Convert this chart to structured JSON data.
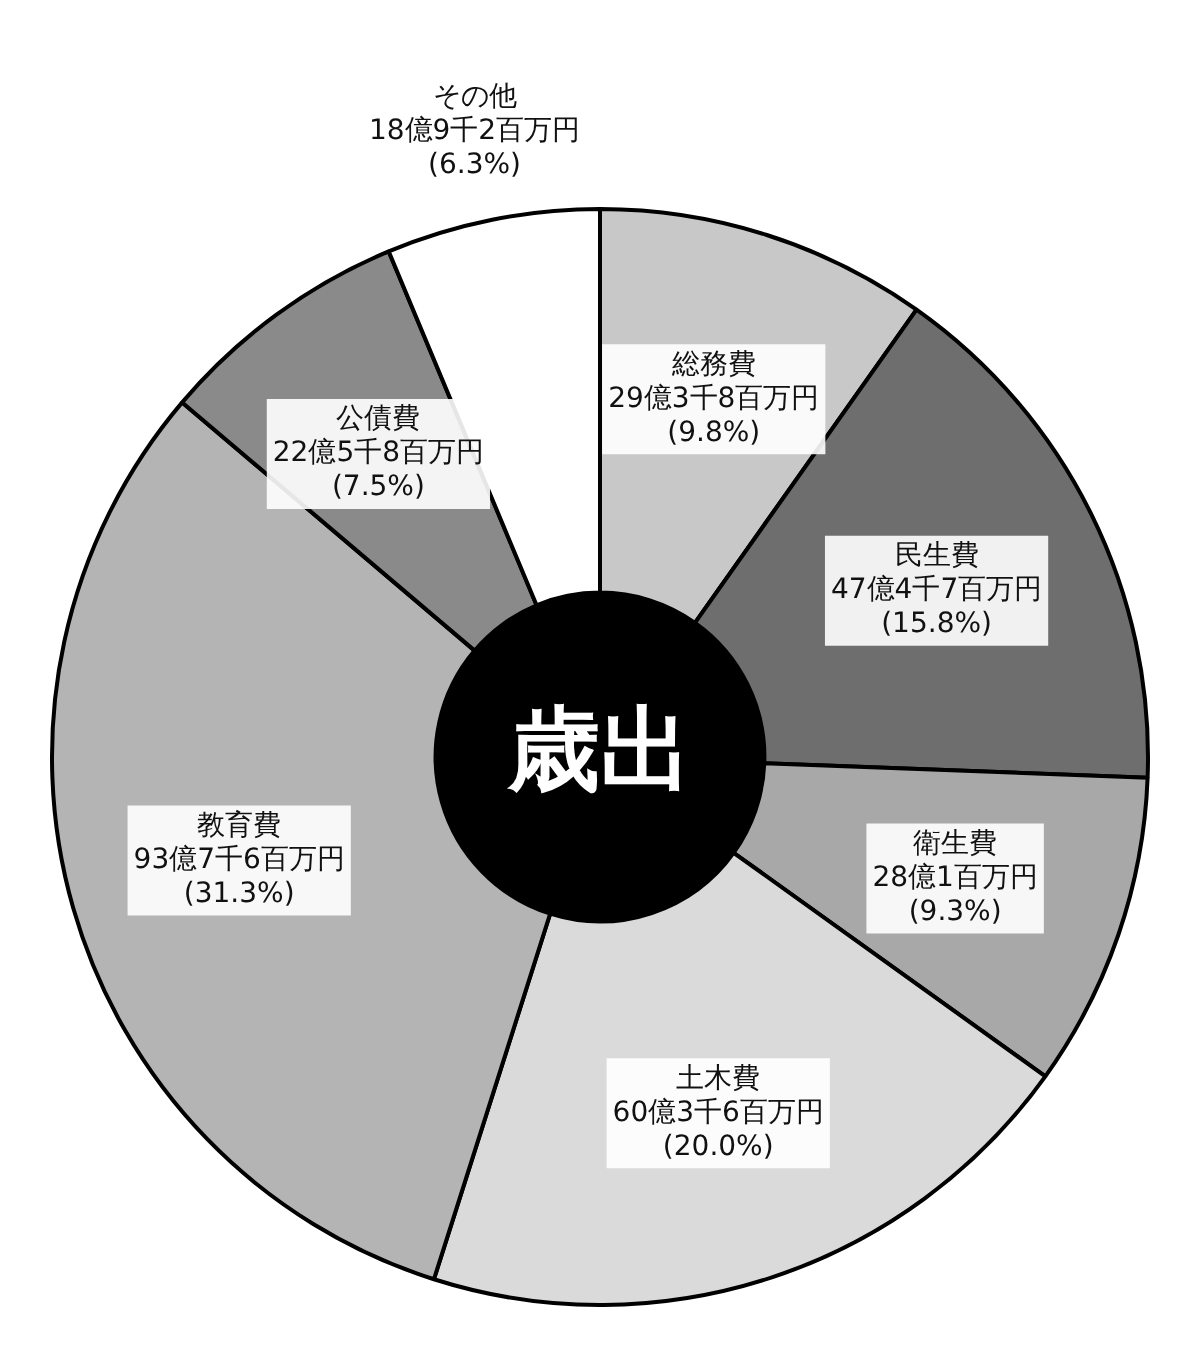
{
  "chart_data": {
    "type": "donut",
    "title": "歳出",
    "categories": [
      "総務費",
      "民生費",
      "衛生費",
      "土木費",
      "教育費",
      "公債費",
      "その他"
    ],
    "values": [
      9.8,
      15.8,
      9.3,
      20.0,
      31.3,
      7.5,
      6.3
    ],
    "value_labels": [
      "29億3千8百万円\n(9.8%)",
      "47億4千7百万円\n(15.8%)",
      "28億1百万円\n(9.3%)",
      "60億3千6百万円\n(20.0%)",
      "93億7千6百万円\n(31.3%)",
      "22億5千8百万円\n(7.5%)",
      "18億9千2百万円\n(6.3%)"
    ],
    "colors": [
      "#c8c8c8",
      "#6e6e6e",
      "#a8a8a8",
      "#dadada",
      "#b4b4b4",
      "#8a8a8a",
      "#ffffff"
    ],
    "legend": false
  }
}
